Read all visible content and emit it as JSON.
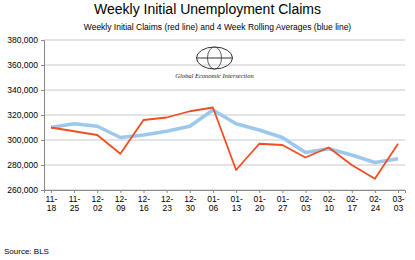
{
  "chart_data": {
    "type": "line",
    "title": "Weekly Initial Unemployment Claims",
    "subtitle": "Weekly Initial Claims (red line) and 4 Week Rolling Averages (blue line)",
    "annotations": [
      "Global Economic Intersection"
    ],
    "source": "Source: BLS",
    "categories": [
      "11-18",
      "11-25",
      "12-02",
      "12-09",
      "12-16",
      "12-23",
      "12-30",
      "01-06",
      "01-13",
      "01-20",
      "01-27",
      "02-03",
      "02-10",
      "02-17",
      "02-24",
      "03-03"
    ],
    "series": [
      {
        "color": "#9cc8ec",
        "values": [
          310000,
          313000,
          311000,
          302000,
          304000,
          307000,
          311000,
          324000,
          313000,
          308000,
          302000,
          290000,
          293000,
          288000,
          282000,
          285000
        ]
      },
      {
        "color": "#ef4e23",
        "values": [
          310000,
          307000,
          304000,
          289000,
          316000,
          318000,
          323000,
          326000,
          276000,
          297000,
          296000,
          286000,
          294000,
          280000,
          269000,
          297000
        ]
      }
    ],
    "ylim": [
      260000,
      380000
    ],
    "yticks": [
      {
        "value": 380000,
        "label": "380,000"
      },
      {
        "value": 360000,
        "label": "360,000"
      },
      {
        "value": 340000,
        "label": "340,000"
      },
      {
        "value": 320000,
        "label": "320,000"
      },
      {
        "value": 300000,
        "label": "300,000"
      },
      {
        "value": 280000,
        "label": "280,000"
      },
      {
        "value": 260000,
        "label": "260,000"
      }
    ],
    "grid": true
  }
}
